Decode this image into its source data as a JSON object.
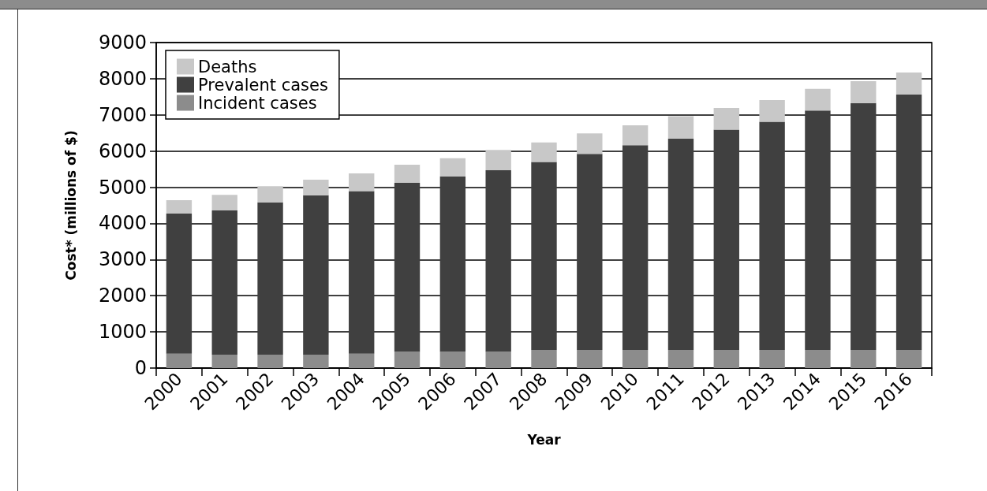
{
  "chart_data": {
    "type": "bar",
    "stacked": true,
    "xlabel": "Year",
    "ylabel": "Cost* (millions of $)",
    "categories": [
      "2000",
      "2001",
      "2002",
      "2003",
      "2004",
      "2005",
      "2006",
      "2007",
      "2008",
      "2009",
      "2010",
      "2011",
      "2012",
      "2013",
      "2014",
      "2015",
      "2016"
    ],
    "series": [
      {
        "name": "Incident cases",
        "color": "#8c8c8c",
        "values": [
          400,
          370,
          370,
          370,
          400,
          450,
          450,
          450,
          500,
          500,
          500,
          500,
          500,
          500,
          500,
          500,
          500
        ]
      },
      {
        "name": "Prevalent cases",
        "color": "#404040",
        "values": [
          3870,
          3990,
          4210,
          4410,
          4490,
          4670,
          4850,
          5020,
          5200,
          5420,
          5660,
          5840,
          6090,
          6310,
          6620,
          6830,
          7060
        ]
      },
      {
        "name": "Deaths",
        "color": "#c8c8c8",
        "values": [
          370,
          430,
          450,
          430,
          490,
          500,
          500,
          560,
          540,
          570,
          550,
          620,
          600,
          600,
          600,
          600,
          610
        ]
      }
    ],
    "ylim": [
      0,
      9000
    ],
    "yticks": [
      0,
      1000,
      2000,
      3000,
      4000,
      5000,
      6000,
      7000,
      8000,
      9000
    ],
    "grid": "y",
    "legend": "top left"
  }
}
